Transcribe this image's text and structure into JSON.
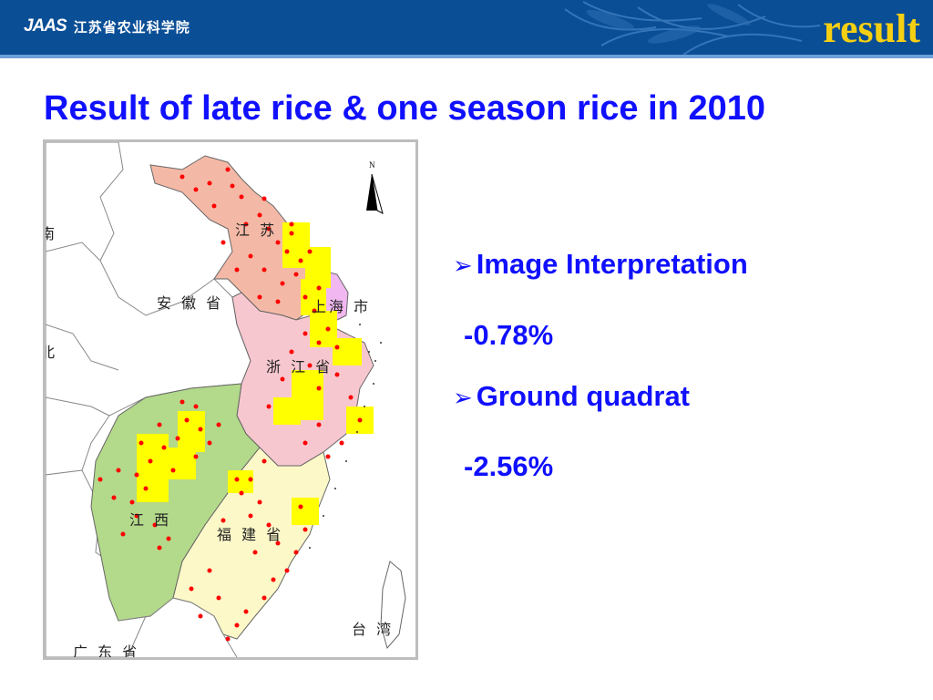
{
  "header": {
    "logo_mark": "JAAS",
    "logo_text": "江苏省农业科学院",
    "section_label": "result"
  },
  "title": "Result of late rice & one season rice in 2010",
  "map": {
    "north_label": "N",
    "provinces": {
      "jiangsu": "江 苏",
      "anhui": "安 徽 省",
      "shanghai": "上海 市",
      "zhejiang": "浙 江 省",
      "jiangxi": "江 西",
      "fujian": "福 建 省",
      "taiwan": "台 湾",
      "guangdong": "广 东 省",
      "edge_left_top": "南",
      "edge_left_mid": "北"
    },
    "colors": {
      "jiangsu": "#f4b9a6",
      "shanghai": "#f0b7f0",
      "zhejiang": "#f7c7cf",
      "jiangxi": "#b3d98a",
      "fujian": "#fdf8c8",
      "sample_block": "#ffff00",
      "sample_point": "#ff0000"
    }
  },
  "bullets": [
    {
      "label": "Image Interpretation",
      "value": "-0.78%"
    },
    {
      "label": "Ground quadrat",
      "value": "-2.56%"
    }
  ]
}
